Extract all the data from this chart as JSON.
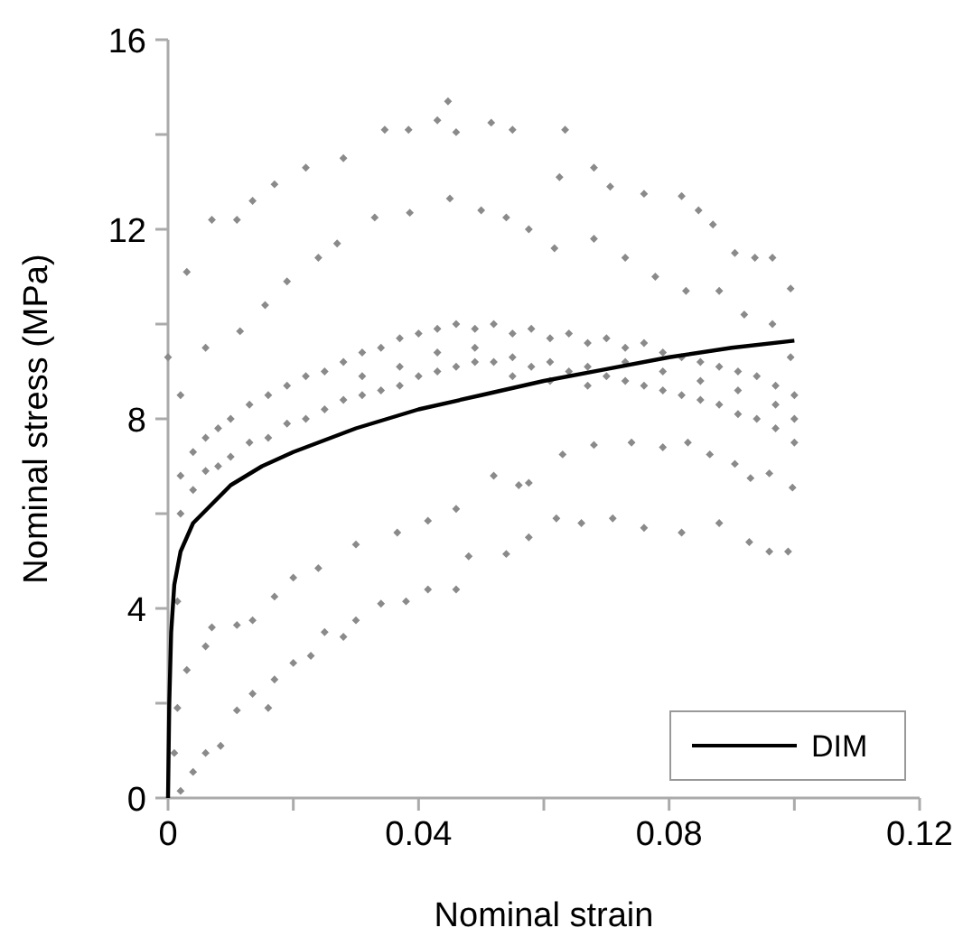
{
  "chart_data": {
    "type": "scatter",
    "xlabel": "Nominal strain",
    "ylabel": "Nominal stress (MPa)",
    "xlim": [
      0,
      0.12
    ],
    "ylim": [
      0,
      16
    ],
    "xticks": [
      0,
      {
        "value": 0.02,
        "label": null
      },
      0.04,
      {
        "value": 0.06,
        "label": null
      },
      0.08,
      {
        "value": 0.1,
        "label": null
      },
      0.12
    ],
    "yticks": [
      0,
      {
        "value": 2,
        "label": null
      },
      4,
      {
        "value": 6,
        "label": null
      },
      8,
      {
        "value": 10,
        "label": null
      },
      12,
      {
        "value": 14,
        "label": null
      },
      16
    ],
    "grid": false,
    "legend": "bottom right",
    "marker": "diamond",
    "series": [
      {
        "color": "#8a8a8a",
        "x": [
          0,
          0.003,
          0.007,
          0.011,
          0.0135,
          0.017,
          0.022,
          0.028,
          0.0346,
          0.0384,
          0.043,
          0.0447,
          0.046,
          0.0516,
          0.055,
          0.0634,
          0.0625,
          0.068,
          0.0706,
          0.076,
          0.082,
          0.0847,
          0.087,
          0.0905,
          0.0937,
          0.0965,
          0.0994,
          0.002,
          0.006,
          0.0115,
          0.0155,
          0.019,
          0.024,
          0.027,
          0.033,
          0.0386,
          0.045,
          0.05,
          0.054,
          0.0576,
          0.0617,
          0.068,
          0.073,
          0.0778,
          0.0827,
          0.088,
          0.092,
          0.0965,
          0.0994,
          0.002,
          0.002,
          0.004,
          0.004,
          0.006,
          0.006,
          0.008,
          0.008,
          0.01,
          0.01,
          0.013,
          0.013,
          0.016,
          0.016,
          0.019,
          0.019,
          0.022,
          0.022,
          0.025,
          0.025,
          0.028,
          0.028,
          0.031,
          0.031,
          0.031,
          0.034,
          0.034,
          0.037,
          0.037,
          0.037,
          0.04,
          0.04,
          0.043,
          0.043,
          0.043,
          0.046,
          0.046,
          0.049,
          0.049,
          0.049,
          0.052,
          0.052,
          0.055,
          0.055,
          0.055,
          0.058,
          0.058,
          0.061,
          0.061,
          0.061,
          0.064,
          0.064,
          0.067,
          0.067,
          0.067,
          0.07,
          0.07,
          0.073,
          0.073,
          0.073,
          0.076,
          0.076,
          0.079,
          0.079,
          0.079,
          0.082,
          0.082,
          0.085,
          0.085,
          0.085,
          0.088,
          0.088,
          0.091,
          0.091,
          0.091,
          0.094,
          0.094,
          0.097,
          0.097,
          0.097,
          0.1,
          0.1,
          0.1,
          0.0015,
          0.003,
          0.006,
          0.007,
          0.011,
          0.0135,
          0.017,
          0.02,
          0.024,
          0.03,
          0.0366,
          0.0415,
          0.046,
          0.052,
          0.056,
          0.0576,
          0.063,
          0.068,
          0.074,
          0.079,
          0.083,
          0.0865,
          0.0905,
          0.093,
          0.096,
          0.0997,
          0.002,
          0.004,
          0.006,
          0.0084,
          0.011,
          0.0135,
          0.016,
          0.017,
          0.02,
          0.0228,
          0.025,
          0.028,
          0.03,
          0.034,
          0.038,
          0.0415,
          0.046,
          0.048,
          0.054,
          0.0576,
          0.062,
          0.066,
          0.071,
          0.076,
          0.082,
          0.088,
          0.0928,
          0.096,
          0.099,
          0.001,
          0.0015
        ],
        "values": [
          9.3,
          11.1,
          12.2,
          12.2,
          12.6,
          12.95,
          13.3,
          13.5,
          14.1,
          14.1,
          14.3,
          14.7,
          14.05,
          14.25,
          14.1,
          14.1,
          13.1,
          13.3,
          12.9,
          12.75,
          12.7,
          12.4,
          12.1,
          11.5,
          11.4,
          11.4,
          10.75,
          8.5,
          9.5,
          9.85,
          10.4,
          10.9,
          11.4,
          11.7,
          12.25,
          12.35,
          12.65,
          12.4,
          12.25,
          12,
          11.6,
          11.8,
          11.4,
          11,
          10.7,
          10.7,
          10.2,
          10,
          9.3,
          6,
          6.8,
          6.5,
          7.3,
          6.9,
          7.6,
          7,
          7.8,
          7.2,
          8,
          7.5,
          8.3,
          7.6,
          8.5,
          7.9,
          8.7,
          8,
          8.9,
          8.2,
          9,
          8.4,
          9.2,
          8.5,
          9.4,
          8.9,
          8.6,
          9.5,
          8.7,
          9.7,
          9.1,
          8.9,
          9.8,
          9,
          9.9,
          9.4,
          9.1,
          10,
          9.2,
          9.9,
          9.5,
          9.2,
          10,
          9.3,
          9.8,
          8.9,
          9.1,
          9.9,
          9.2,
          9.7,
          8.8,
          9,
          9.8,
          9.1,
          9.6,
          8.7,
          8.9,
          9.7,
          8.8,
          9.5,
          9.2,
          8.7,
          9.6,
          8.6,
          9.4,
          9,
          8.5,
          9.3,
          8.4,
          9.2,
          8.8,
          8.3,
          9.1,
          8.1,
          9,
          8.6,
          8,
          8.9,
          7.8,
          8.7,
          8.3,
          7.5,
          8.5,
          8,
          4.15,
          2.7,
          3.2,
          3.6,
          3.65,
          3.75,
          4.25,
          4.65,
          4.85,
          5.35,
          5.6,
          5.85,
          6.1,
          6.8,
          6.6,
          6.65,
          7.25,
          7.45,
          7.5,
          7.4,
          7.5,
          7.25,
          7.05,
          6.75,
          6.85,
          6.55,
          0.15,
          0.55,
          0.95,
          1.1,
          1.85,
          2.2,
          1.9,
          2.5,
          2.85,
          3,
          3.5,
          3.4,
          3.75,
          4.1,
          4.15,
          4.4,
          4.4,
          5.1,
          5.15,
          5.5,
          5.9,
          5.8,
          5.9,
          5.7,
          5.6,
          5.8,
          5.4,
          5.2,
          5.2,
          0.95,
          1.9
        ]
      },
      {
        "type": "line",
        "name": "DIM",
        "color": "#000000",
        "marker": "none",
        "line_style": "solid",
        "x": [
          0,
          0.0002,
          0.0005,
          0.001,
          0.002,
          0.004,
          0.007,
          0.01,
          0.015,
          0.02,
          0.03,
          0.04,
          0.05,
          0.06,
          0.07,
          0.08,
          0.09,
          0.1
        ],
        "values": [
          0,
          2,
          3.5,
          4.5,
          5.2,
          5.8,
          6.2,
          6.6,
          7,
          7.3,
          7.8,
          8.2,
          8.5,
          8.8,
          9.05,
          9.3,
          9.5,
          9.65
        ]
      }
    ]
  }
}
